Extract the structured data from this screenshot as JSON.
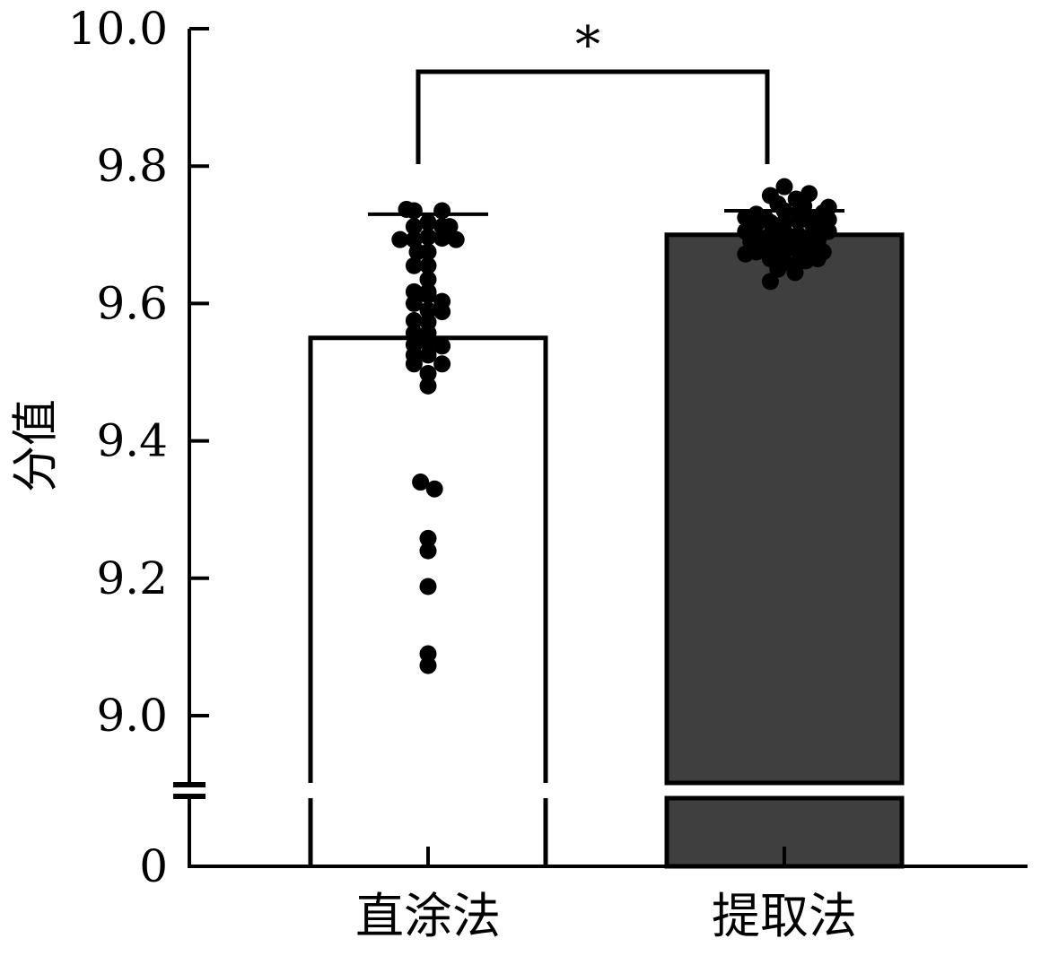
{
  "chart_data": {
    "type": "bar",
    "title": "",
    "xlabel": "",
    "ylabel": "分值",
    "ylim": [
      9.0,
      10.0
    ],
    "axis_break": true,
    "ticks": [
      {
        "value": 0,
        "label": "0"
      },
      {
        "value": 9.0,
        "label": "9.0"
      },
      {
        "value": 9.2,
        "label": "9.2"
      },
      {
        "value": 9.4,
        "label": "9.4"
      },
      {
        "value": 9.6,
        "label": "9.6"
      },
      {
        "value": 9.8,
        "label": "9.8"
      },
      {
        "value": 10.0,
        "label": "10.0"
      }
    ],
    "categories": [
      "直涂法",
      "提取法"
    ],
    "values": [
      9.55,
      9.7
    ],
    "error_upper": [
      9.73,
      9.735
    ],
    "bar_colors": [
      "#ffffff",
      "#3f3f3f"
    ],
    "significance": {
      "label": "*",
      "between": [
        0,
        1
      ]
    },
    "points": [
      [
        {
          "dx": -2,
          "y": 9.737
        },
        {
          "dx": -1.3,
          "y": 9.735
        },
        {
          "dx": 1.3,
          "y": 9.735
        },
        {
          "dx": -1.3,
          "y": 9.712
        },
        {
          "dx": 0,
          "y": 9.718
        },
        {
          "dx": 1.3,
          "y": 9.712
        },
        {
          "dx": 2,
          "y": 9.712
        },
        {
          "dx": -2.6,
          "y": 9.693
        },
        {
          "dx": -1.3,
          "y": 9.693
        },
        {
          "dx": 0,
          "y": 9.697
        },
        {
          "dx": 1.3,
          "y": 9.695
        },
        {
          "dx": 2.6,
          "y": 9.693
        },
        {
          "dx": -1,
          "y": 9.675
        },
        {
          "dx": 0,
          "y": 9.675
        },
        {
          "dx": -1.3,
          "y": 9.655
        },
        {
          "dx": 0,
          "y": 9.655
        },
        {
          "dx": 0,
          "y": 9.635
        },
        {
          "dx": -1.3,
          "y": 9.617
        },
        {
          "dx": 0,
          "y": 9.617
        },
        {
          "dx": -1.3,
          "y": 9.6
        },
        {
          "dx": 0,
          "y": 9.612
        },
        {
          "dx": 1.3,
          "y": 9.603
        },
        {
          "dx": 0,
          "y": 9.59
        },
        {
          "dx": 1.3,
          "y": 9.588
        },
        {
          "dx": -1.3,
          "y": 9.575
        },
        {
          "dx": 0,
          "y": 9.573
        },
        {
          "dx": -1.3,
          "y": 9.557
        },
        {
          "dx": 0,
          "y": 9.557
        },
        {
          "dx": -1.3,
          "y": 9.54
        },
        {
          "dx": 0,
          "y": 9.543
        },
        {
          "dx": 1.3,
          "y": 9.538
        },
        {
          "dx": -1.3,
          "y": 9.525
        },
        {
          "dx": 0,
          "y": 9.525
        },
        {
          "dx": -1.3,
          "y": 9.512
        },
        {
          "dx": 1.3,
          "y": 9.512
        },
        {
          "dx": 0,
          "y": 9.498
        },
        {
          "dx": 0,
          "y": 9.48
        },
        {
          "dx": -0.7,
          "y": 9.34
        },
        {
          "dx": 0.6,
          "y": 9.33
        },
        {
          "dx": 0,
          "y": 9.258
        },
        {
          "dx": 0,
          "y": 9.24
        },
        {
          "dx": 0,
          "y": 9.188
        },
        {
          "dx": 0,
          "y": 9.09
        },
        {
          "dx": 0,
          "y": 9.073
        }
      ],
      [
        {
          "dx": 0,
          "y": 9.77
        },
        {
          "dx": -1.3,
          "y": 9.757
        },
        {
          "dx": 2.3,
          "y": 9.76
        },
        {
          "dx": 1.1,
          "y": 9.752
        },
        {
          "dx": -0.6,
          "y": 9.745
        },
        {
          "dx": 1.8,
          "y": 9.742
        },
        {
          "dx": -2.6,
          "y": 9.73
        },
        {
          "dx": -1.8,
          "y": 9.725
        },
        {
          "dx": 0,
          "y": 9.735
        },
        {
          "dx": 1.3,
          "y": 9.732
        },
        {
          "dx": 2.6,
          "y": 9.725
        },
        {
          "dx": 3.6,
          "y": 9.732
        },
        {
          "dx": 4.1,
          "y": 9.74
        },
        {
          "dx": -3.6,
          "y": 9.725
        },
        {
          "dx": -2.6,
          "y": 9.715
        },
        {
          "dx": -1.3,
          "y": 9.718
        },
        {
          "dx": 0,
          "y": 9.718
        },
        {
          "dx": 1.3,
          "y": 9.72
        },
        {
          "dx": 2.6,
          "y": 9.715
        },
        {
          "dx": 3.6,
          "y": 9.72
        },
        {
          "dx": 4.1,
          "y": 9.722
        },
        {
          "dx": -3.6,
          "y": 9.705
        },
        {
          "dx": -2.6,
          "y": 9.7
        },
        {
          "dx": -1.3,
          "y": 9.7
        },
        {
          "dx": 0,
          "y": 9.705
        },
        {
          "dx": 1.3,
          "y": 9.7
        },
        {
          "dx": 2.6,
          "y": 9.7
        },
        {
          "dx": 3.6,
          "y": 9.703
        },
        {
          "dx": 4.1,
          "y": 9.705
        },
        {
          "dx": -3.1,
          "y": 9.69
        },
        {
          "dx": -2,
          "y": 9.69
        },
        {
          "dx": -0.7,
          "y": 9.688
        },
        {
          "dx": 0.7,
          "y": 9.69
        },
        {
          "dx": 2,
          "y": 9.69
        },
        {
          "dx": 3.1,
          "y": 9.69
        },
        {
          "dx": -3.6,
          "y": 9.672
        },
        {
          "dx": -2.6,
          "y": 9.675
        },
        {
          "dx": -1.3,
          "y": 9.68
        },
        {
          "dx": 0,
          "y": 9.675
        },
        {
          "dx": 1.3,
          "y": 9.678
        },
        {
          "dx": 2.6,
          "y": 9.675
        },
        {
          "dx": 3.6,
          "y": 9.675
        },
        {
          "dx": -1.3,
          "y": 9.665
        },
        {
          "dx": 0,
          "y": 9.66
        },
        {
          "dx": 1.3,
          "y": 9.66
        },
        {
          "dx": 2,
          "y": 9.662
        },
        {
          "dx": 3.1,
          "y": 9.665
        },
        {
          "dx": -0.6,
          "y": 9.65
        },
        {
          "dx": 1,
          "y": 9.645
        },
        {
          "dx": -1.3,
          "y": 9.632
        }
      ]
    ]
  }
}
